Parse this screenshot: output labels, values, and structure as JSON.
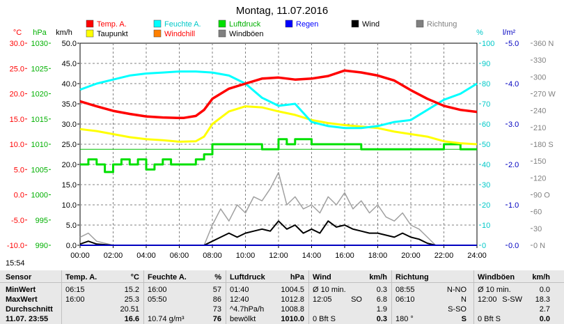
{
  "chart_data": {
    "type": "line",
    "title": "Montag, 11.07.2016",
    "x_ticks": [
      "00:00",
      "02:00",
      "04:00",
      "06:00",
      "08:00",
      "10:00",
      "12:00",
      "14:00",
      "16:00",
      "18:00",
      "20:00",
      "22:00",
      "24:00"
    ],
    "axes": {
      "temp": {
        "unit": "°C",
        "ticks": [
          "30.0",
          "25.0",
          "20.0",
          "15.0",
          "10.0",
          "5.0",
          "0.0",
          "-5.0",
          "-10.0"
        ],
        "range": [
          -10,
          30
        ],
        "color": "#ff0000"
      },
      "press": {
        "unit": "hPa",
        "ticks": [
          "1030",
          "1025",
          "1020",
          "1015",
          "1010",
          "1005",
          "1000",
          "995",
          "990"
        ],
        "range": [
          990,
          1030
        ],
        "color": "#00b000"
      },
      "wind": {
        "unit": "km/h",
        "ticks": [
          "50.0",
          "45.0",
          "40.0",
          "35.0",
          "30.0",
          "25.0",
          "20.0",
          "15.0",
          "10.0",
          "5.0",
          "0.0"
        ],
        "range": [
          0,
          50
        ],
        "color": "#000000"
      },
      "hum": {
        "unit": "%",
        "ticks": [
          "100",
          "90",
          "80",
          "70",
          "60",
          "50",
          "40",
          "30",
          "20",
          "10",
          "0"
        ],
        "range": [
          0,
          100
        ],
        "color": "#00c8c8"
      },
      "rain": {
        "unit": "l/m²",
        "ticks": [
          "5.0",
          "4.0",
          "3.0",
          "2.0",
          "1.0",
          "0.0"
        ],
        "range": [
          0,
          5
        ],
        "color": "#0000c0"
      },
      "dir": {
        "ticks": [
          "360 N",
          "330",
          "300",
          "270 W",
          "240",
          "210",
          "180 S",
          "150",
          "120",
          "90 O",
          "60",
          "30",
          "0 N"
        ],
        "range": [
          0,
          360
        ],
        "color": "#808080"
      }
    },
    "legend": [
      {
        "name": "Temp. A.",
        "color": "#ff0000"
      },
      {
        "name": "Feuchte A.",
        "color": "#00ffff"
      },
      {
        "name": "Luftdruck",
        "color": "#00e000"
      },
      {
        "name": "Regen",
        "color": "#0000ff"
      },
      {
        "name": "Wind",
        "color": "#000000"
      },
      {
        "name": "Richtung",
        "color": "#808080"
      },
      {
        "name": "Taupunkt",
        "color": "#ffff00"
      },
      {
        "name": "Windchill",
        "color": "#ff8000"
      },
      {
        "name": "Windböen",
        "color": "#808080"
      }
    ],
    "series": [
      {
        "name": "Temp. A.",
        "axis": "temp",
        "x": [
          0,
          1,
          2,
          3,
          4,
          5,
          6,
          6.25,
          7,
          7.5,
          8,
          9,
          10,
          11,
          12,
          13,
          14,
          15,
          16,
          17,
          18,
          19,
          20,
          21,
          22,
          23,
          24
        ],
        "y": [
          18.5,
          17.5,
          16.6,
          16.0,
          15.5,
          15.3,
          15.2,
          15.2,
          15.6,
          16.8,
          19.0,
          21.0,
          22.0,
          23.0,
          23.2,
          22.8,
          23.0,
          23.5,
          24.6,
          24.2,
          23.6,
          22.6,
          20.7,
          19.0,
          17.6,
          16.8,
          16.4
        ]
      },
      {
        "name": "Feuchte A.",
        "axis": "hum",
        "x": [
          0,
          1,
          2,
          3,
          4,
          5,
          6,
          7,
          8,
          9,
          10,
          11,
          12,
          13,
          14,
          15,
          16,
          17,
          18,
          19,
          20,
          21,
          22,
          23,
          24
        ],
        "y": [
          77,
          80,
          82,
          84,
          85,
          85.5,
          86,
          86,
          85.5,
          84,
          80,
          73,
          69,
          70,
          61,
          59,
          58,
          58,
          59,
          61,
          62,
          67,
          72,
          75,
          80
        ]
      },
      {
        "name": "Taupunkt",
        "axis": "temp",
        "x": [
          0,
          1,
          2,
          3,
          4,
          5,
          6,
          7,
          7.5,
          8,
          9,
          10,
          11,
          12,
          13,
          14,
          15,
          16,
          17,
          18,
          19,
          20,
          21,
          22,
          23,
          24
        ],
        "y": [
          13.0,
          12.6,
          12.0,
          11.4,
          11.0,
          10.8,
          10.5,
          10.6,
          11.5,
          14.0,
          16.5,
          17.5,
          17.3,
          16.5,
          15.8,
          14.8,
          14.2,
          13.8,
          13.5,
          13.2,
          12.5,
          12.0,
          11.5,
          10.6,
          10.2,
          10.0
        ]
      },
      {
        "name": "Luftdruck",
        "axis": "press",
        "x": [
          0,
          0.5,
          1,
          1.5,
          2,
          2.5,
          3,
          3.5,
          4,
          4.5,
          5,
          5.5,
          6,
          6.5,
          7,
          7.5,
          8,
          9,
          10,
          11,
          12,
          12.5,
          13,
          14,
          15,
          16,
          17,
          18,
          19,
          20,
          21,
          22,
          23,
          24
        ],
        "y": [
          1006,
          1007,
          1006,
          1004.5,
          1006,
          1007,
          1006,
          1007,
          1005,
          1006,
          1007,
          1006,
          1006,
          1006,
          1007,
          1008,
          1010,
          1010,
          1010,
          1009,
          1011,
          1010,
          1011,
          1010,
          1010,
          1010,
          1009,
          1009,
          1009,
          1009,
          1009,
          1010,
          1009,
          1009
        ]
      },
      {
        "name": "Wind",
        "axis": "wind",
        "x": [
          0,
          0.5,
          1,
          2,
          3,
          4,
          5,
          6,
          7,
          7.5,
          8,
          8.5,
          9,
          9.5,
          10,
          10.5,
          11,
          11.5,
          12,
          12.5,
          13,
          13.5,
          14,
          14.5,
          15,
          15.5,
          16,
          16.5,
          17,
          17.5,
          18,
          18.5,
          19,
          19.5,
          20,
          20.5,
          21,
          21.5,
          22,
          23,
          24
        ],
        "y": [
          0.3,
          1,
          0.3,
          0,
          0,
          0,
          0,
          0,
          0,
          0,
          1,
          2,
          3,
          2,
          3,
          3.5,
          4,
          3.5,
          6,
          4,
          5,
          3,
          4,
          3,
          6,
          4.5,
          5,
          4,
          3.5,
          3,
          3,
          2.5,
          2,
          3,
          2,
          1.5,
          0.5,
          0,
          0,
          0,
          0
        ]
      },
      {
        "name": "Windböen",
        "axis": "wind",
        "x": [
          0,
          0.5,
          1,
          2,
          3,
          4,
          5,
          6,
          7,
          7.5,
          8,
          8.5,
          9,
          9.5,
          10,
          10.5,
          11,
          11.5,
          12,
          12.5,
          13,
          13.5,
          14,
          14.5,
          15,
          15.5,
          16,
          16.5,
          17,
          17.5,
          18,
          18.5,
          19,
          19.5,
          20,
          20.5,
          21,
          21.5,
          22,
          23,
          24
        ],
        "y": [
          2,
          3,
          1,
          0,
          0,
          0,
          0,
          0,
          0,
          0,
          5,
          9,
          6,
          10,
          8,
          12,
          11,
          14,
          18,
          10,
          12,
          9,
          10,
          8,
          12,
          10,
          13,
          9,
          11,
          8,
          10,
          7,
          6,
          8,
          5,
          4,
          2,
          0,
          0,
          0,
          0
        ]
      }
    ],
    "references": [
      {
        "name": "Luftdruck-Referenz",
        "axis": "press",
        "y": 1009
      }
    ]
  },
  "labels": {
    "timestamp": "15:54"
  },
  "table": {
    "headers": {
      "sensor": "Sensor",
      "temp": "Temp. A.",
      "temp_unit": "°C",
      "hum": "Feuchte A.",
      "hum_unit": "%",
      "press": "Luftdruck",
      "press_unit": "hPa",
      "wind": "Wind",
      "wind_unit": "km/h",
      "dir": "Richtung",
      "gust": "Windböen",
      "gust_unit": "km/h"
    },
    "rows": [
      {
        "label": "MinWert",
        "temp_time": "06:15",
        "temp": "15.2",
        "hum_time": "16:00",
        "hum": "57",
        "press_time": "01:40",
        "press": "1004.5",
        "wind_time": "Ø 10 min.",
        "wind": "0.3",
        "dir_time": "08:55",
        "dir": "N-NO",
        "gust_time": "Ø 10 min.",
        "gust": "0.0"
      },
      {
        "label": "MaxWert",
        "temp_time": "16:00",
        "temp": "25.3",
        "hum_time": "05:50",
        "hum": "86",
        "press_time": "12:40",
        "press": "1012.8",
        "wind_time": "12:05",
        "wind_dir": "SO",
        "wind": "6.8",
        "dir_time": "06:10",
        "dir": "N",
        "gust_time": "12:00",
        "gust_dir": "S-SW",
        "gust": "18.3"
      },
      {
        "label": "Durchschnitt",
        "temp_time": "",
        "temp": "20.51",
        "hum_time": "",
        "hum": "73",
        "press_time": "^4.7hPa/h",
        "press": "1008.8",
        "wind_time": "",
        "wind": "1.9",
        "dir_time": "",
        "dir": "S-SO",
        "gust_time": "",
        "gust": "2.7"
      },
      {
        "label": "11.07. 23:55",
        "temp_time": "",
        "temp": "16.6",
        "hum_time": "10.74 g/m³",
        "hum": "76",
        "press_time": "bewölkt",
        "press": "1010.0",
        "wind_time": "0 Bft S",
        "wind": "0.3",
        "dir_time": "180 °",
        "dir": "S",
        "gust_time": "0 Bft S",
        "gust": "0.0"
      }
    ]
  }
}
